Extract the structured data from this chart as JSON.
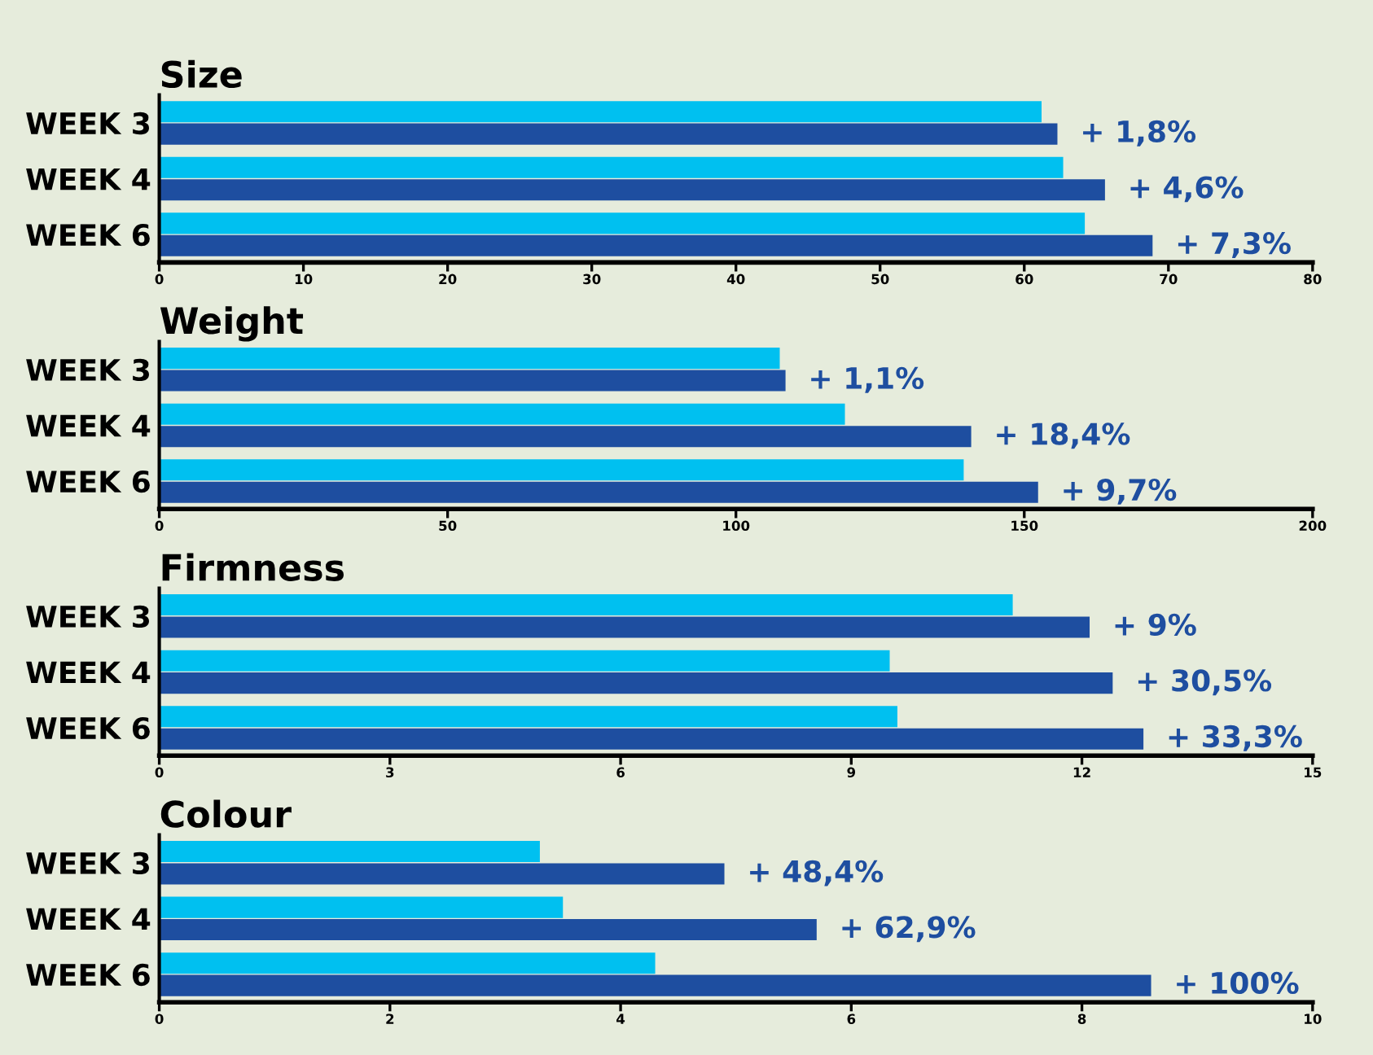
{
  "chart_data": [
    {
      "type": "bar",
      "orientation": "horizontal",
      "title": "Size",
      "categories": [
        "WEEK 3",
        "WEEK 4",
        "WEEK 6"
      ],
      "series": [
        {
          "color": "#00c0f0",
          "values": [
            61.2,
            62.7,
            64.2
          ]
        },
        {
          "color": "#1e4ea0",
          "values": [
            62.3,
            65.6,
            68.9
          ]
        }
      ],
      "annotations": [
        {
          "text": "+ 1,8%",
          "x": 62.3,
          "y": "WEEK 3"
        },
        {
          "text": "+ 4,6%",
          "x": 65.6,
          "y": "WEEK 4"
        },
        {
          "text": "+ 7,3%",
          "x": 68.9,
          "y": "WEEK 6"
        }
      ],
      "xlim": [
        0,
        80
      ],
      "xticks": [
        0,
        10,
        20,
        30,
        40,
        50,
        60,
        70,
        80
      ],
      "grid": false,
      "legend": false
    },
    {
      "type": "bar",
      "orientation": "horizontal",
      "title": "Weight",
      "categories": [
        "WEEK 3",
        "WEEK 4",
        "WEEK 6"
      ],
      "series": [
        {
          "color": "#00c0f0",
          "values": [
            107.6,
            118.9,
            139.5
          ]
        },
        {
          "color": "#1e4ea0",
          "values": [
            108.6,
            140.8,
            152.4
          ]
        }
      ],
      "annotations": [
        {
          "text": "+ 1,1%",
          "x": 108.6,
          "y": "WEEK 3"
        },
        {
          "text": "+ 18,4%",
          "x": 140.8,
          "y": "WEEK 4"
        },
        {
          "text": "+ 9,7%",
          "x": 152.4,
          "y": "WEEK 6"
        }
      ],
      "xlim": [
        0,
        200
      ],
      "xticks": [
        0,
        50,
        100,
        150,
        200
      ],
      "grid": false,
      "legend": false
    },
    {
      "type": "bar",
      "orientation": "horizontal",
      "title": "Firmness",
      "categories": [
        "WEEK 3",
        "WEEK 4",
        "WEEK 6"
      ],
      "series": [
        {
          "color": "#00c0f0",
          "values": [
            11.1,
            9.5,
            9.6
          ]
        },
        {
          "color": "#1e4ea0",
          "values": [
            12.1,
            12.4,
            12.8
          ]
        }
      ],
      "annotations": [
        {
          "text": "+ 9%",
          "x": 12.1,
          "y": "WEEK 3"
        },
        {
          "text": "+ 30,5%",
          "x": 12.4,
          "y": "WEEK 4"
        },
        {
          "text": "+ 33,3%",
          "x": 12.8,
          "y": "WEEK 6"
        }
      ],
      "xlim": [
        0,
        15
      ],
      "xticks": [
        0,
        3,
        6,
        9,
        12,
        15
      ],
      "grid": false,
      "legend": false
    },
    {
      "type": "bar",
      "orientation": "horizontal",
      "title": "Colour",
      "categories": [
        "WEEK 3",
        "WEEK 4",
        "WEEK 6"
      ],
      "series": [
        {
          "color": "#00c0f0",
          "values": [
            3.3,
            3.5,
            4.3
          ]
        },
        {
          "color": "#1e4ea0",
          "values": [
            4.9,
            5.7,
            8.6
          ]
        }
      ],
      "annotations": [
        {
          "text": "+ 48,4%",
          "x": 4.9,
          "y": "WEEK 3"
        },
        {
          "text": "+ 62,9%",
          "x": 5.7,
          "y": "WEEK 4"
        },
        {
          "text": "+ 100%",
          "x": 8.6,
          "y": "WEEK 6"
        }
      ],
      "xlim": [
        0,
        10
      ],
      "xticks": [
        0,
        2,
        4,
        6,
        8,
        10
      ],
      "grid": false,
      "legend": false
    }
  ]
}
